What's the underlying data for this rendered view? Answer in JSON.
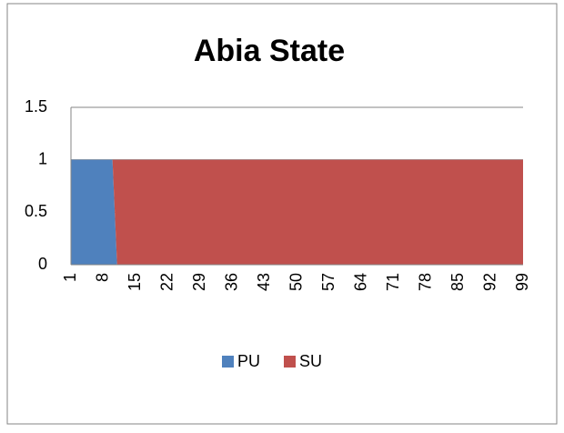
{
  "chart_data": {
    "type": "area",
    "stacked": true,
    "title": "Abia State",
    "categories": [
      1,
      null,
      null,
      null,
      null,
      null,
      null,
      8,
      null,
      null,
      null,
      null,
      null,
      null,
      15,
      null,
      null,
      null,
      null,
      null,
      null,
      22,
      null,
      null,
      null,
      null,
      null,
      null,
      29,
      null,
      null,
      null,
      null,
      null,
      null,
      36,
      null,
      null,
      null,
      null,
      null,
      null,
      43,
      null,
      null,
      null,
      null,
      null,
      null,
      50,
      null,
      null,
      null,
      null,
      null,
      null,
      57,
      null,
      null,
      null,
      null,
      null,
      null,
      64,
      null,
      null,
      null,
      null,
      null,
      null,
      71,
      null,
      null,
      null,
      null,
      null,
      null,
      78,
      null,
      null,
      null,
      null,
      null,
      null,
      85,
      null,
      null,
      null,
      null,
      null,
      null,
      92,
      null,
      null,
      null,
      null,
      null,
      null,
      99
    ],
    "series": [
      {
        "name": "PU",
        "color": "#4f81bd",
        "values": [
          1,
          1,
          1,
          1,
          1,
          1,
          1,
          1,
          1,
          1,
          0,
          0,
          0,
          0,
          0,
          0,
          0,
          0,
          0,
          0,
          0,
          0,
          0,
          0,
          0,
          0,
          0,
          0,
          0,
          0,
          0,
          0,
          0,
          0,
          0,
          0,
          0,
          0,
          0,
          0,
          0,
          0,
          0,
          0,
          0,
          0,
          0,
          0,
          0,
          0,
          0,
          0,
          0,
          0,
          0,
          0,
          0,
          0,
          0,
          0,
          0,
          0,
          0,
          0,
          0,
          0,
          0,
          0,
          0,
          0,
          0,
          0,
          0,
          0,
          0,
          0,
          0,
          0,
          0,
          0,
          0,
          0,
          0,
          0,
          0,
          0,
          0,
          0,
          0,
          0,
          0,
          0,
          0,
          0,
          0,
          0,
          0,
          0,
          0
        ]
      },
      {
        "name": "SU",
        "color": "#c0504d",
        "values": [
          0,
          0,
          0,
          0,
          0,
          0,
          0,
          0,
          0,
          0,
          1,
          1,
          1,
          1,
          1,
          1,
          1,
          1,
          1,
          1,
          1,
          1,
          1,
          1,
          1,
          1,
          1,
          1,
          1,
          1,
          1,
          1,
          1,
          1,
          1,
          1,
          1,
          1,
          1,
          1,
          1,
          1,
          1,
          1,
          1,
          1,
          1,
          1,
          1,
          1,
          1,
          1,
          1,
          1,
          1,
          1,
          1,
          1,
          1,
          1,
          1,
          1,
          1,
          1,
          1,
          1,
          1,
          1,
          1,
          1,
          1,
          1,
          1,
          1,
          1,
          1,
          1,
          1,
          1,
          1,
          1,
          1,
          1,
          1,
          1,
          1,
          1,
          1,
          1,
          1,
          1,
          1,
          1,
          1,
          1,
          1,
          1,
          1,
          1
        ]
      }
    ],
    "ylim": [
      0,
      1.5
    ],
    "yticks": [
      0,
      0.5,
      1,
      1.5
    ],
    "grid": true,
    "legend": "bottom"
  }
}
